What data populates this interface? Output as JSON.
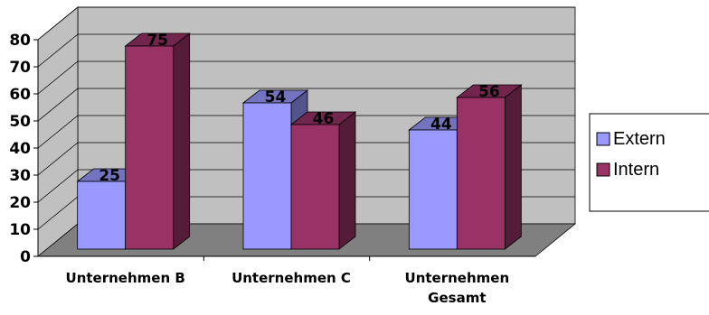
{
  "chart_data": {
    "type": "bar",
    "categories": [
      "Unternehmen B",
      "Unternehmen C",
      "Unternehmen Gesamt"
    ],
    "category_lines": [
      [
        "Unternehmen B"
      ],
      [
        "Unternehmen C"
      ],
      [
        "Unternehmen",
        "Gesamt"
      ]
    ],
    "series": [
      {
        "name": "Extern",
        "values": [
          25,
          54,
          44
        ],
        "color": "#9999ff"
      },
      {
        "name": "Intern",
        "values": [
          75,
          46,
          56
        ],
        "color": "#993366"
      }
    ],
    "yticks": [
      0,
      10,
      20,
      30,
      40,
      50,
      60,
      70,
      80
    ],
    "ylim": [
      0,
      80
    ],
    "grid": true,
    "legend_position": "right",
    "style": "3d-clustered",
    "title": "",
    "xlabel": "",
    "ylabel": ""
  }
}
